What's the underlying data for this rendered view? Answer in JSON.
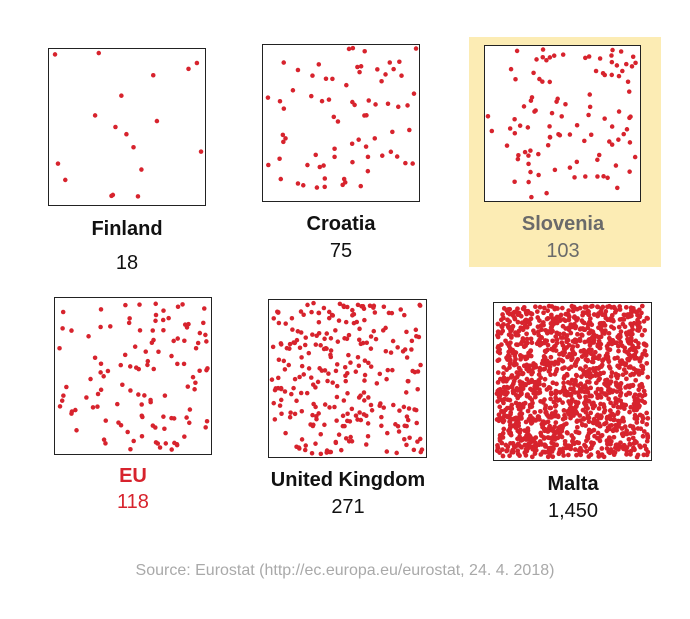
{
  "colors": {
    "dot": "#d7232d",
    "highlight_bg": "#fcecb4",
    "label_default": "#111111",
    "label_highlight": "#6a6a6a",
    "label_eu": "#d7232d"
  },
  "chart_data": {
    "type": "scatter",
    "panels": [
      {
        "name": "Finland",
        "value": "18",
        "dots": 18
      },
      {
        "name": "Croatia",
        "value": "75",
        "dots": 75
      },
      {
        "name": "Slovenia",
        "value": "103",
        "dots": 103,
        "highlighted": true
      },
      {
        "name": "EU",
        "value": "118",
        "dots": 118
      },
      {
        "name": "United Kingdom",
        "value": "271",
        "dots": 271
      },
      {
        "name": "Malta",
        "value": "1,450",
        "dots": 1450
      }
    ]
  },
  "source": "Source: Eurostat (http://ec.europa.eu/eurostat, 24. 4. 2018)"
}
